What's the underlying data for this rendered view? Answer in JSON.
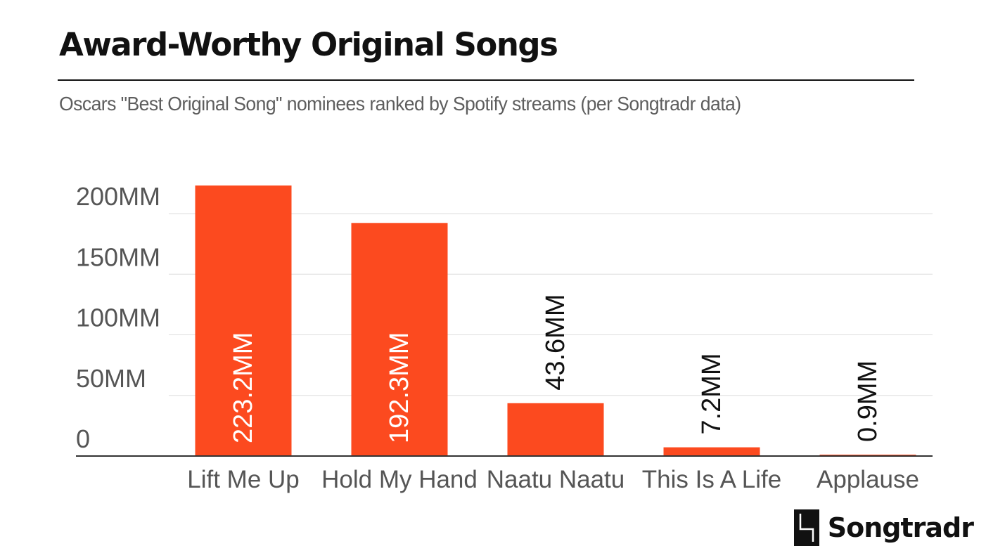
{
  "header": {
    "title": "Award-Worthy Original Songs",
    "subtitle": "Oscars \"Best Original Song\" nominees ranked by Spotify streams (per Songtradr data)"
  },
  "chart_data": {
    "type": "bar",
    "title": "Award-Worthy Original Songs",
    "subtitle": "Oscars \"Best Original Song\" nominees ranked by Spotify streams (per Songtradr data)",
    "xlabel": "",
    "ylabel": "",
    "categories": [
      "Lift Me Up",
      "Hold My Hand",
      "Naatu Naatu",
      "This Is A Life",
      "Applause"
    ],
    "values": [
      223.2,
      192.3,
      43.6,
      7.2,
      0.9
    ],
    "value_labels": [
      "223.2MM",
      "192.3MM",
      "43.6MM",
      "7.2MM",
      "0.9MM"
    ],
    "yticks": [
      0,
      50,
      100,
      150,
      200
    ],
    "ytick_labels": [
      "0",
      "50MM",
      "100MM",
      "150MM",
      "200MM"
    ],
    "ylim": [
      0,
      225
    ],
    "grid": true,
    "legend": "none",
    "colors": {
      "bar": "#fc4a1f",
      "label_inside": "#ffffff",
      "label_outside": "#111111",
      "gridline": "#dddddd",
      "axis": "#333333"
    }
  },
  "brand": {
    "logo_text": "Songtradr"
  }
}
